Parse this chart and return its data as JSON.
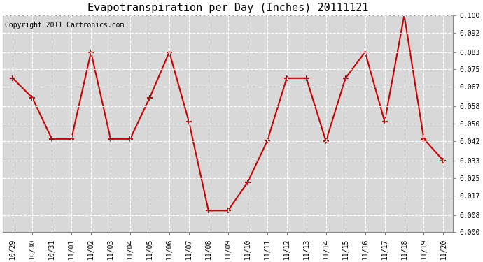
{
  "title": "Evapotranspiration per Day (Inches) 20111121",
  "copyright_text": "Copyright 2011 Cartronics.com",
  "x_labels": [
    "10/29",
    "10/30",
    "10/31",
    "11/01",
    "11/02",
    "11/03",
    "11/04",
    "11/05",
    "11/06",
    "11/07",
    "11/08",
    "11/09",
    "11/10",
    "11/11",
    "11/12",
    "11/13",
    "11/14",
    "11/15",
    "11/16",
    "11/17",
    "11/18",
    "11/19",
    "11/20"
  ],
  "y_values": [
    0.071,
    0.062,
    0.043,
    0.043,
    0.083,
    0.043,
    0.043,
    0.062,
    0.083,
    0.051,
    0.01,
    0.01,
    0.023,
    0.042,
    0.071,
    0.071,
    0.042,
    0.071,
    0.083,
    0.051,
    0.1,
    0.043,
    0.033
  ],
  "line_color": "#cc0000",
  "marker": "+",
  "marker_size": 6,
  "marker_color": "#cc0000",
  "ylim": [
    0.0,
    0.1
  ],
  "yticks": [
    0.0,
    0.008,
    0.017,
    0.025,
    0.033,
    0.042,
    0.05,
    0.058,
    0.067,
    0.075,
    0.083,
    0.092,
    0.1
  ],
  "plot_bg_color": "#d8d8d8",
  "fig_bg_color": "#ffffff",
  "grid_color": "#ffffff",
  "title_fontsize": 11,
  "copyright_fontsize": 7,
  "tick_fontsize": 7
}
